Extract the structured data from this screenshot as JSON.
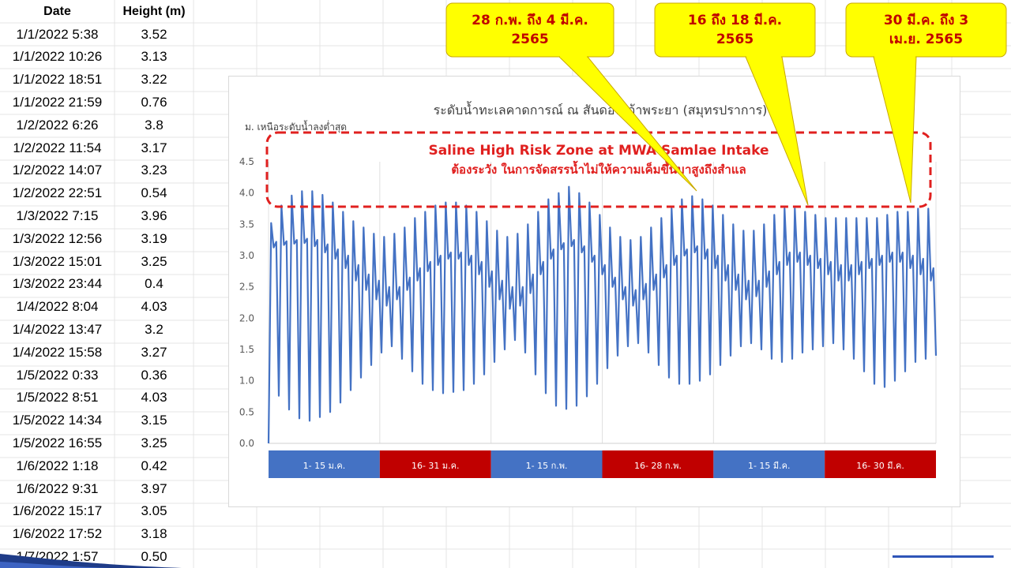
{
  "table": {
    "headers": {
      "date": "Date",
      "height": "Height (m)"
    },
    "rows": [
      {
        "date": "1/1/2022 5:38",
        "height": "3.52"
      },
      {
        "date": "1/1/2022 10:26",
        "height": "3.13"
      },
      {
        "date": "1/1/2022 18:51",
        "height": "3.22"
      },
      {
        "date": "1/1/2022 21:59",
        "height": "0.76"
      },
      {
        "date": "1/2/2022 6:26",
        "height": "3.8"
      },
      {
        "date": "1/2/2022 11:54",
        "height": "3.17"
      },
      {
        "date": "1/2/2022 14:07",
        "height": "3.23"
      },
      {
        "date": "1/2/2022 22:51",
        "height": "0.54"
      },
      {
        "date": "1/3/2022 7:15",
        "height": "3.96"
      },
      {
        "date": "1/3/2022 12:56",
        "height": "3.19"
      },
      {
        "date": "1/3/2022 15:01",
        "height": "3.25"
      },
      {
        "date": "1/3/2022 23:44",
        "height": "0.4"
      },
      {
        "date": "1/4/2022 8:04",
        "height": "4.03"
      },
      {
        "date": "1/4/2022 13:47",
        "height": "3.2"
      },
      {
        "date": "1/4/2022 15:58",
        "height": "3.27"
      },
      {
        "date": "1/5/2022 0:33",
        "height": "0.36"
      },
      {
        "date": "1/5/2022 8:51",
        "height": "4.03"
      },
      {
        "date": "1/5/2022 14:34",
        "height": "3.15"
      },
      {
        "date": "1/5/2022 16:55",
        "height": "3.25"
      },
      {
        "date": "1/6/2022 1:18",
        "height": "0.42"
      },
      {
        "date": "1/6/2022 9:31",
        "height": "3.97"
      },
      {
        "date": "1/6/2022 15:17",
        "height": "3.05"
      },
      {
        "date": "1/6/2022 17:52",
        "height": "3.18"
      },
      {
        "date": "1/7/2022 1:57",
        "height": "0.50"
      }
    ]
  },
  "colors": {
    "line": "#4472c4",
    "zone": "#e0201f",
    "zone_text": "#e0201f",
    "callout_fill": "#ffff00",
    "callout_text": "#c00000",
    "period_blue": "#4472c4",
    "period_red": "#c00000",
    "axis_text": "#595959"
  },
  "chart_data": {
    "type": "line",
    "title": "ระดับน้ำทะเลคาดการณ์ ณ สันดอนเจ้าพระยา (สมุทรปราการ)",
    "ylabel": "ม. เหนือระดับน้ำลงต่ำสุด",
    "ylim": [
      0,
      4.5
    ],
    "yticks": [
      0.0,
      0.5,
      1.0,
      1.5,
      2.0,
      2.5,
      3.0,
      3.5,
      4.0,
      4.5
    ],
    "ytick_labels": [
      "0.0",
      "0.5",
      "1.0",
      "1.5",
      "2.0",
      "2.5",
      "3.0",
      "3.5",
      "4.0",
      "4.5"
    ],
    "x_period_labels": [
      {
        "label": "1- 15 ม.ค.",
        "color": "blue"
      },
      {
        "label": "16- 31 ม.ค.",
        "color": "red"
      },
      {
        "label": "1- 15 ก.พ.",
        "color": "blue"
      },
      {
        "label": "16- 28 ก.พ.",
        "color": "red"
      },
      {
        "label": "1- 15 มี.ค.",
        "color": "blue"
      },
      {
        "label": "16- 30 มี.ค.",
        "color": "red"
      }
    ],
    "series": [
      {
        "values": [
          0.0,
          3.52,
          3.13,
          3.22,
          0.76,
          3.8,
          3.17,
          3.23,
          0.54,
          3.96,
          3.19,
          3.25,
          0.4,
          4.03,
          3.2,
          3.27,
          0.36,
          4.03,
          3.15,
          3.25,
          0.42,
          3.97,
          3.05,
          3.18,
          0.5,
          3.85,
          2.95,
          3.1,
          0.65,
          3.7,
          2.8,
          3.0,
          0.85,
          3.55,
          2.6,
          2.85,
          1.05,
          3.45,
          2.45,
          2.7,
          1.25,
          3.35,
          2.3,
          2.6,
          1.45,
          3.3,
          2.2,
          2.5,
          1.55,
          3.35,
          2.3,
          2.5,
          1.35,
          3.45,
          2.45,
          2.65,
          1.15,
          3.6,
          2.6,
          2.8,
          0.95,
          3.7,
          2.75,
          2.9,
          0.85,
          3.8,
          2.85,
          3.0,
          0.8,
          3.85,
          2.95,
          3.05,
          0.82,
          3.85,
          2.95,
          3.05,
          0.85,
          3.8,
          2.85,
          3.0,
          0.95,
          3.7,
          2.7,
          2.9,
          1.1,
          3.55,
          2.5,
          2.75,
          1.3,
          3.4,
          2.3,
          2.6,
          1.5,
          3.3,
          2.15,
          2.5,
          1.65,
          3.35,
          2.2,
          2.5,
          1.45,
          3.5,
          2.4,
          2.7,
          1.1,
          3.7,
          2.7,
          2.9,
          0.8,
          3.9,
          2.95,
          3.1,
          0.6,
          4.0,
          3.1,
          3.2,
          0.55,
          4.1,
          3.15,
          3.25,
          0.6,
          4.0,
          3.05,
          3.15,
          0.75,
          3.85,
          2.9,
          3.0,
          0.95,
          3.65,
          2.7,
          2.85,
          1.2,
          3.45,
          2.5,
          2.65,
          1.4,
          3.3,
          2.3,
          2.5,
          1.55,
          3.25,
          2.2,
          2.45,
          1.6,
          3.3,
          2.3,
          2.55,
          1.45,
          3.45,
          2.45,
          2.7,
          1.25,
          3.6,
          2.65,
          2.85,
          1.05,
          3.75,
          2.85,
          3.0,
          0.95,
          3.9,
          3.0,
          3.1,
          0.95,
          3.95,
          3.05,
          3.15,
          1.0,
          3.9,
          2.95,
          3.1,
          1.1,
          3.8,
          2.8,
          3.0,
          1.25,
          3.65,
          2.6,
          2.85,
          1.4,
          3.5,
          2.45,
          2.7,
          1.55,
          3.4,
          2.3,
          2.6,
          1.6,
          3.4,
          2.35,
          2.6,
          1.5,
          3.5,
          2.5,
          2.75,
          1.35,
          3.65,
          2.7,
          2.9,
          1.3,
          3.75,
          2.85,
          3.05,
          1.35,
          3.75,
          2.9,
          3.05,
          1.45,
          3.7,
          2.85,
          3.0,
          1.5,
          3.65,
          2.8,
          2.95,
          1.55,
          3.6,
          2.7,
          2.9,
          1.6,
          3.6,
          2.6,
          2.85,
          1.5,
          3.6,
          2.6,
          2.85,
          1.35,
          3.6,
          2.7,
          2.9,
          1.15,
          3.6,
          2.8,
          2.95,
          0.95,
          3.6,
          2.85,
          3.0,
          0.9,
          3.65,
          2.9,
          3.05,
          1.0,
          3.7,
          2.9,
          3.05,
          1.15,
          3.7,
          2.8,
          3.0,
          1.3,
          3.75,
          2.7,
          2.95,
          1.35,
          3.75,
          2.6,
          2.8,
          1.4
        ]
      }
    ],
    "annotations": {
      "zone_title": "Saline High Risk Zone at MWA Samlae Intake",
      "zone_subtitle": "ต้องระวัง ในการจัดสรรน้ำไม่ให้ความเค็มขึ้นมาสูงถึงสำแล",
      "callouts": [
        {
          "line1": "28 ก.พ. ถึง 4 มี.ค.",
          "line2": "2565"
        },
        {
          "line1": "16 ถึง 18 มี.ค.",
          "line2": "2565"
        },
        {
          "line1": "30 มี.ค. ถึง 3",
          "line2": "เม.ย. 2565"
        }
      ]
    }
  }
}
